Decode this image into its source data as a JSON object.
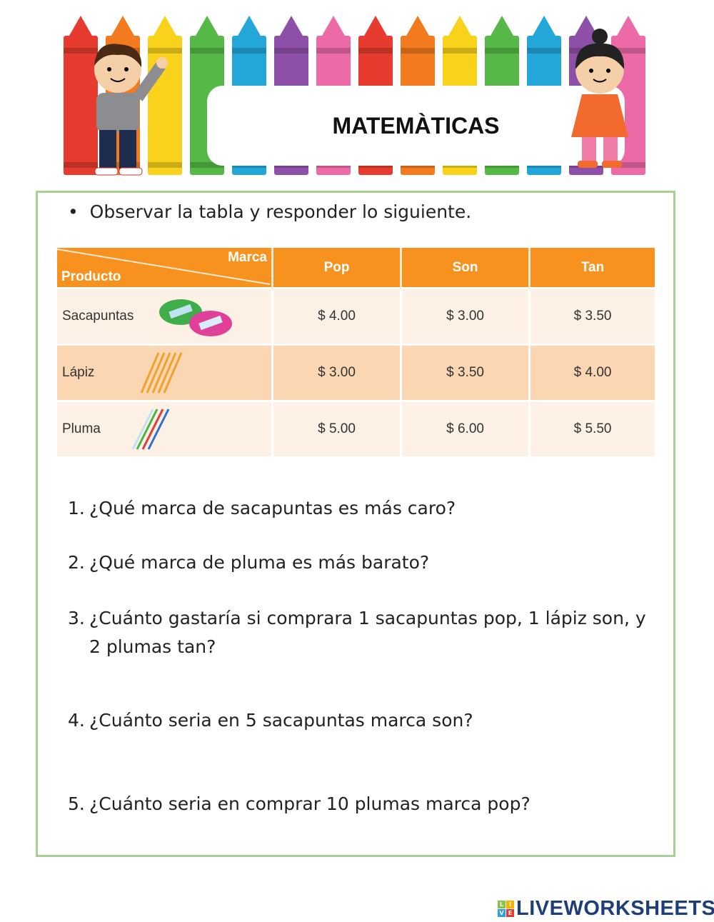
{
  "header": {
    "title": "MATEMÀTICAS"
  },
  "crayon_colors": [
    "#e63b2e",
    "#f47a20",
    "#f9d21c",
    "#56b947",
    "#23a7d9",
    "#8e4fa8",
    "#ec6aa6",
    "#e63b2e",
    "#f47a20",
    "#f9d21c",
    "#56b947",
    "#23a7d9",
    "#8e4fa8",
    "#ec6aa6"
  ],
  "instruction": {
    "bullet": "•",
    "text": "Observar la tabla y responder lo siguiente."
  },
  "table": {
    "corner_top": "Marca",
    "corner_bottom": "Producto",
    "columns": [
      "Pop",
      "Son",
      "Tan"
    ],
    "rows": [
      {
        "product": "Sacapuntas",
        "icon": "pencil-sharpener-icon",
        "prices": [
          "$ 4.00",
          "$ 3.00",
          "$ 3.50"
        ]
      },
      {
        "product": "Lápiz",
        "icon": "pencils-icon",
        "prices": [
          "$ 3.00",
          "$ 3.50",
          "$ 4.00"
        ]
      },
      {
        "product": "Pluma",
        "icon": "pens-icon",
        "prices": [
          "$ 5.00",
          "$ 6.00",
          "$ 5.50"
        ]
      }
    ]
  },
  "questions": [
    {
      "n": "1.",
      "text": "¿Qué marca de sacapuntas es más caro?"
    },
    {
      "n": "2.",
      "text": "¿Qué marca de pluma es más barato?"
    },
    {
      "n": "3.",
      "text": "¿Cuánto gastaría si comprara 1 sacapuntas pop, 1 lápiz son, y 2 plumas tan?"
    },
    {
      "n": "4.",
      "text": "¿Cuánto seria en 5 sacapuntas marca son?"
    },
    {
      "n": "5.",
      "text": "¿Cuánto seria en comprar 10 plumas marca pop?"
    }
  ],
  "footer": {
    "logo": "LIVEWORKSHEETS"
  }
}
